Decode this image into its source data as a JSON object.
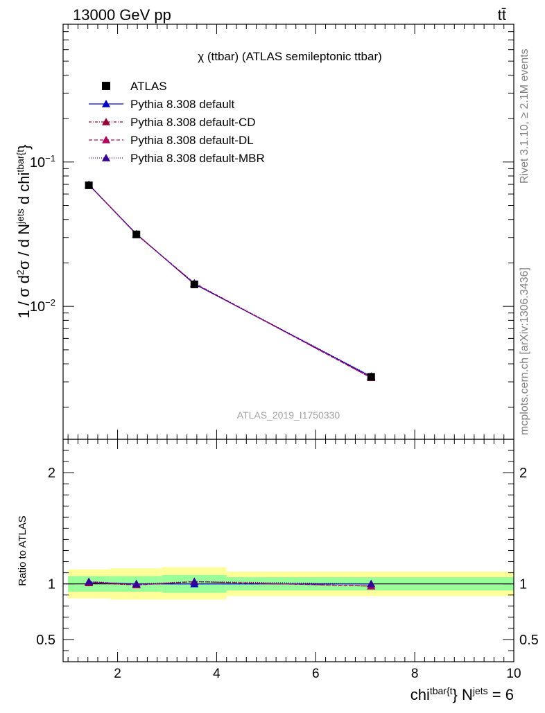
{
  "header": {
    "left": "13000 GeV pp",
    "right": "tt̄"
  },
  "side_labels": {
    "rivet": "Rivet 3.1.10, ≥ 2.1M events",
    "mcplots": "mcplots.cern.ch [arXiv:1306.3436]"
  },
  "chart_data": {
    "type": "line",
    "title": "χ (ttbar) (ATLAS semileptonic ttbar)",
    "watermark": "ATLAS_2019_I1750330",
    "xlabel": {
      "base": "chi",
      "sup1": "tbar{t",
      "mid": "} N",
      "sup2": "jets",
      "tail": " = 6"
    },
    "ylabel": {
      "p1": "1 / σ d",
      "sup1": "2",
      "p2": "σ / d N",
      "sup2": "jets",
      "p3": " d chi",
      "sup3": "tbar{t",
      "p4": "}"
    },
    "ratio_ylabel": "Ratio to ATLAS",
    "xlim": [
      0.9,
      10.0
    ],
    "ylim": [
      0.0012,
      0.9
    ],
    "yscale": "log",
    "ratio_ylim": [
      0.3,
      2.3
    ],
    "x_ticks": [
      "2",
      "4",
      "6",
      "8",
      "10"
    ],
    "y_ticks": [
      {
        "value": 0.1,
        "base": "10",
        "exp": "−1"
      },
      {
        "value": 0.01,
        "base": "10",
        "exp": "−2"
      }
    ],
    "ratio_ticks": [
      "0.5",
      "1",
      "2"
    ],
    "legend": [
      {
        "label": "ATLAS"
      },
      {
        "label": "Pythia 8.308 default"
      },
      {
        "label": "Pythia 8.308 default-CD"
      },
      {
        "label": "Pythia 8.308 default-DL"
      },
      {
        "label": "Pythia 8.308 default-MBR"
      }
    ],
    "bins": [
      {
        "lo": 1.0,
        "hi": 1.85
      },
      {
        "lo": 1.85,
        "hi": 2.9
      },
      {
        "lo": 2.9,
        "hi": 4.2
      },
      {
        "lo": 4.2,
        "hi": 10.0
      }
    ],
    "data": {
      "name": "ATLAS",
      "x": [
        1.42,
        2.38,
        3.55,
        7.12
      ],
      "y": [
        0.069,
        0.0315,
        0.0142,
        0.00325
      ]
    },
    "band_green": [
      [
        0.93,
        1.07
      ],
      [
        0.93,
        1.07
      ],
      [
        0.92,
        1.08
      ],
      [
        0.94,
        1.06
      ]
    ],
    "band_yellow": [
      [
        0.87,
        1.13
      ],
      [
        0.86,
        1.14
      ],
      [
        0.86,
        1.15
      ],
      [
        0.89,
        1.11
      ]
    ],
    "series": [
      {
        "name": "Pythia 8.308 default",
        "color": "#0000cc",
        "dash": "",
        "x": [
          1.42,
          2.38,
          3.55,
          7.12
        ],
        "y": [
          0.0695,
          0.0317,
          0.0143,
          0.00326
        ],
        "ratio": [
          1.01,
          1.0,
          1.0,
          1.0
        ]
      },
      {
        "name": "Pythia 8.308 default-CD",
        "color": "#990033",
        "dash": "4,2,1,2",
        "x": [
          1.42,
          2.38,
          3.55,
          7.12
        ],
        "y": [
          0.0698,
          0.0315,
          0.0145,
          0.0032
        ],
        "ratio": [
          1.01,
          0.99,
          1.02,
          0.98
        ]
      },
      {
        "name": "Pythia 8.308 default-DL",
        "color": "#b3005c",
        "dash": "5,3",
        "x": [
          1.42,
          2.38,
          3.55,
          7.12
        ],
        "y": [
          0.0697,
          0.0316,
          0.0144,
          0.0032
        ],
        "ratio": [
          1.02,
          0.99,
          1.02,
          0.98
        ]
      },
      {
        "name": "Pythia 8.308 default-MBR",
        "color": "#330099",
        "dash": "1,2",
        "x": [
          1.42,
          2.38,
          3.55,
          7.12
        ],
        "y": [
          0.0696,
          0.0317,
          0.0144,
          0.00328
        ],
        "ratio": [
          1.02,
          1.0,
          1.02,
          1.0
        ]
      }
    ]
  }
}
